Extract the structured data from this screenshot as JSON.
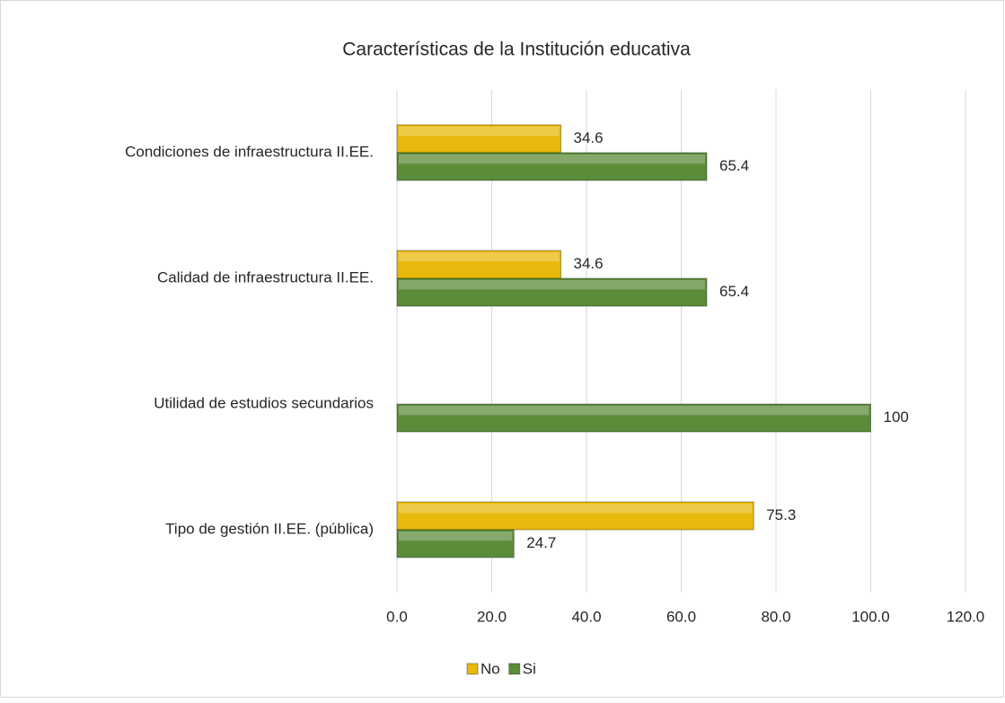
{
  "chart_data": {
    "type": "bar",
    "orientation": "horizontal",
    "title": "Características de la Institución educativa",
    "categories": [
      "Condiciones de infraestructura II.EE.",
      "Calidad de infraestructura II.EE.",
      "Utilidad de estudios secundarios",
      "Tipo de gestión II.EE. (pública)"
    ],
    "series": [
      {
        "name": "No",
        "color": "#e8b90c",
        "values": [
          34.6,
          34.6,
          null,
          75.3
        ]
      },
      {
        "name": "Si",
        "color": "#5b8c3a",
        "values": [
          65.4,
          65.4,
          100,
          24.7
        ]
      }
    ],
    "xlim": [
      0,
      120
    ],
    "xticks": [
      {
        "value": 0,
        "label": "0.0"
      },
      {
        "value": 20,
        "label": "20.0"
      },
      {
        "value": 40,
        "label": "40.0"
      },
      {
        "value": 60,
        "label": "60.0"
      },
      {
        "value": 80,
        "label": "80.0"
      },
      {
        "value": 100,
        "label": "100.0"
      },
      {
        "value": 120,
        "label": "120.0"
      }
    ],
    "grid": true,
    "legend": "bottom"
  }
}
